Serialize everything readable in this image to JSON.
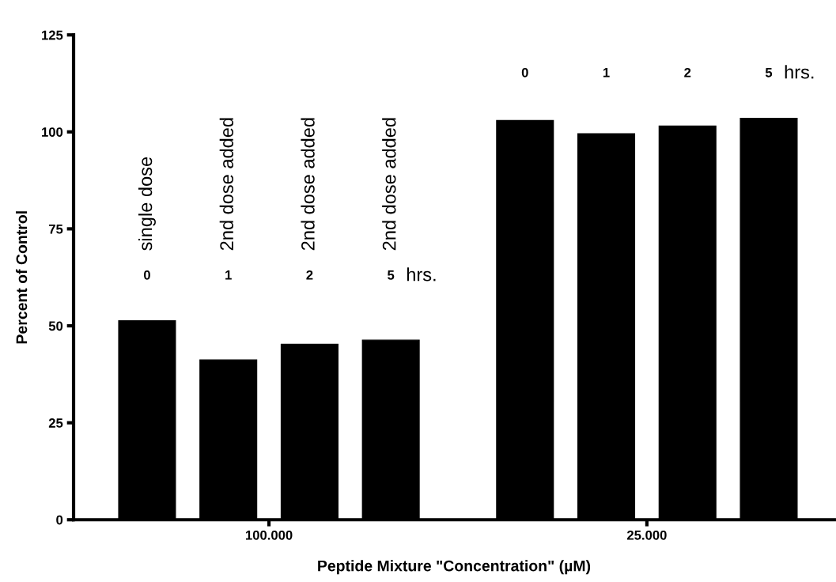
{
  "chart_data": {
    "type": "bar",
    "xlabel": "Peptide Mixture \"Concentration\" (µM)",
    "ylabel": "Percent of Control",
    "categories": [
      "100.000",
      "25.000"
    ],
    "series": [
      {
        "color": "#000000",
        "values": [
          51.3,
          102.9
        ]
      },
      {
        "color": "#000000",
        "values": [
          41.2,
          99.5
        ]
      },
      {
        "color": "#000000",
        "values": [
          45.2,
          101.5
        ]
      },
      {
        "color": "#000000",
        "values": [
          46.3,
          103.5
        ]
      }
    ],
    "annotations": [
      "single dose",
      "2nd dose added",
      "2nd dose added",
      "2nd dose added",
      "0",
      "1",
      "2",
      "5",
      "hrs.",
      "0",
      "1",
      "2",
      "5",
      "hrs."
    ],
    "ylim": [
      0,
      125
    ],
    "yticks": [
      0,
      25,
      50,
      75,
      100,
      125
    ],
    "grid": false,
    "legend": false
  }
}
